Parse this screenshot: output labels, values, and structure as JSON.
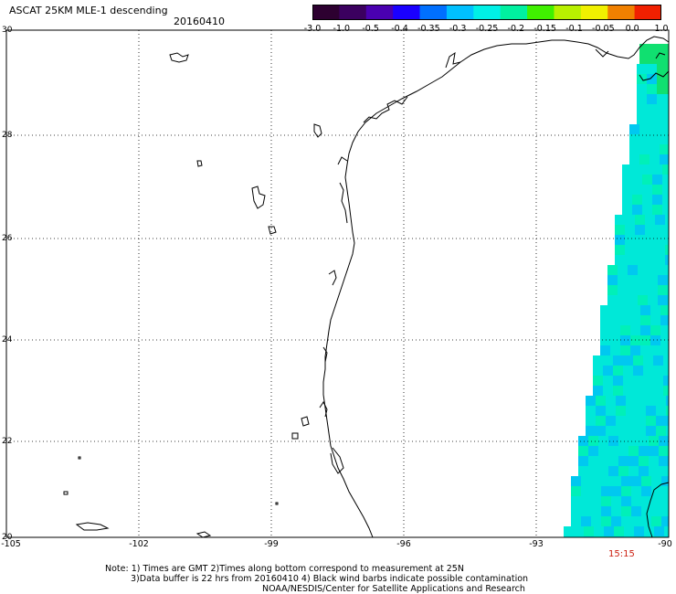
{
  "title": "ASCAT 25KM MLE-1 descending",
  "date": "20160410",
  "colorbar": {
    "labels": [
      "-3.0",
      "-1.0",
      "-0.5",
      "-0.4",
      "-0.35",
      "-0.3",
      "-0.25",
      "-0.2",
      "-0.15",
      "-0.1",
      "-0.05",
      "0.0",
      "1.0"
    ],
    "colors": [
      "#2d0030",
      "#3b005f",
      "#4a00b0",
      "#1a00ff",
      "#0070ff",
      "#00c0ff",
      "#00f0e6",
      "#00f0a0",
      "#40f000",
      "#b8f000",
      "#f0f000",
      "#f08000",
      "#f02000"
    ]
  },
  "lat_labels": [
    "30",
    "28",
    "26",
    "24",
    "22",
    "20"
  ],
  "lon_labels": [
    "-105",
    "-102",
    "-99",
    "-96",
    "-93",
    "-90"
  ],
  "time": "15:15",
  "notes": {
    "line1": "Note: 1) Times are GMT 2)Times along bottom correspond to measurement at 25N",
    "line2": "3)Data buffer is 22 hrs from 20160410 4) Black wind barbs indicate possible contamination",
    "line3": "NOAA/NESDIS/Center for Satellite Applications and Research"
  },
  "swath_colors": {
    "main": "#00e8d8",
    "dark": "#00c8f0",
    "light": "#00f0b8",
    "green": "#10e070"
  }
}
